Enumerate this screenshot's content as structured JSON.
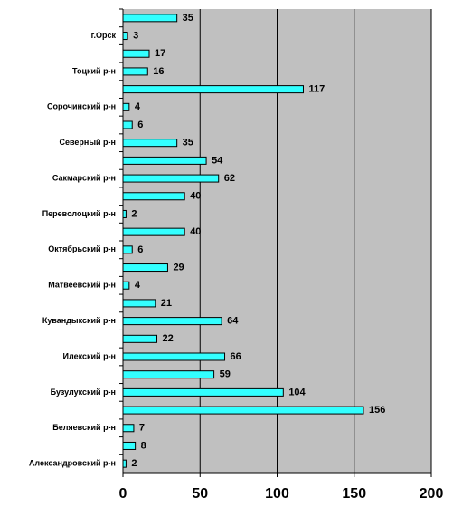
{
  "chart_data": {
    "type": "barh",
    "categories": [
      null,
      "г.Орск",
      null,
      "Тоцкий р-н",
      null,
      "Сорочинский р-н",
      null,
      "Северный р-н",
      null,
      "Сакмарский р-н",
      null,
      "Переволоцкий р-н",
      null,
      "Октябрьский р-н",
      null,
      "Матвеевский р-н",
      null,
      "Кувандыкский р-н",
      null,
      "Илекский р-н",
      null,
      "Бузулукский р-н",
      null,
      "Беляевский р-н",
      null,
      "Александровский р-н"
    ],
    "values": [
      35,
      3,
      17,
      16,
      117,
      4,
      6,
      35,
      54,
      62,
      40,
      2,
      40,
      6,
      29,
      4,
      21,
      64,
      22,
      66,
      59,
      104,
      156,
      7,
      8,
      2
    ],
    "color": "#33ffff",
    "background": "#c0c0c0",
    "xlim": [
      0,
      200
    ],
    "xticks": [
      0,
      50,
      100,
      150,
      200
    ],
    "grid": true
  }
}
